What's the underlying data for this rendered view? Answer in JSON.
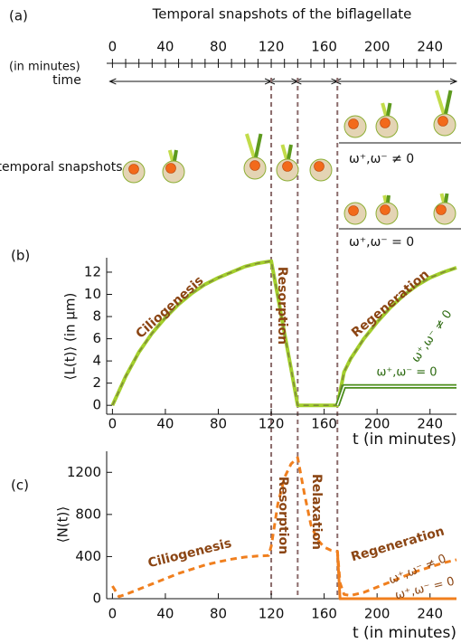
{
  "timeline": {
    "label": "(a)",
    "title": "Temporal snapshots of the biflagellate",
    "xlim": [
      -3,
      260
    ],
    "ticks": [
      0,
      40,
      80,
      120,
      160,
      200,
      240
    ],
    "minor_ticks": [
      0,
      10,
      20,
      30,
      40,
      50,
      60,
      70,
      80,
      90,
      100,
      110,
      120,
      130,
      140,
      150,
      160,
      170,
      180,
      190,
      200,
      210,
      220,
      230,
      240,
      250
    ],
    "unit_label": "(in minutes)",
    "axis_label": "time",
    "phase_bounds": [
      0,
      120,
      140,
      170,
      260
    ],
    "dividers": [
      120,
      140,
      170
    ],
    "snapshot_label": "temporal snapshots",
    "case_labels": [
      "ω⁺,ω⁻ ≠ 0",
      "ω⁺,ω⁻ = 0"
    ]
  },
  "chart_data": [
    {
      "type": "line",
      "label": "(b)",
      "ylabel": "⟨L(t)⟩  (in μm)",
      "xlabel": "t (in minutes)",
      "xlim": [
        -3,
        260
      ],
      "xticks": [
        0,
        40,
        80,
        120,
        160,
        200,
        240
      ],
      "ylim": [
        -0.8,
        13.3
      ],
      "yticks": [
        0,
        2,
        4,
        6,
        8,
        10,
        12
      ],
      "annotations": [
        "Ciliogenesis",
        "Resorption",
        "Regeneration"
      ],
      "x": [
        0,
        10,
        20,
        30,
        40,
        50,
        60,
        70,
        80,
        90,
        100,
        110,
        120,
        125,
        130,
        135,
        140,
        150,
        160,
        170,
        175,
        180,
        190,
        200,
        210,
        220,
        230,
        240,
        250,
        260
      ],
      "series": [
        {
          "name": "ω⁺,ω⁻ ≠ 0",
          "color": "#a3cf2c",
          "style": "dashed",
          "values": [
            0,
            2.6,
            4.8,
            6.5,
            7.9,
            9.1,
            10.1,
            10.9,
            11.5,
            12.0,
            12.5,
            12.8,
            13.0,
            9.8,
            6.5,
            3.3,
            0,
            0,
            0,
            0,
            3.0,
            4.2,
            6.0,
            7.5,
            8.8,
            9.9,
            10.8,
            11.5,
            12.0,
            12.4
          ]
        },
        {
          "name": "ω⁺,ω⁻ = 0",
          "color": "#4a8c1a",
          "style": "double",
          "values": [
            null,
            null,
            null,
            null,
            null,
            null,
            null,
            null,
            null,
            null,
            null,
            null,
            null,
            null,
            null,
            null,
            null,
            null,
            null,
            0,
            1.7,
            1.7,
            1.7,
            1.7,
            1.7,
            1.7,
            1.7,
            1.7,
            1.7,
            1.7
          ]
        }
      ]
    },
    {
      "type": "line",
      "label": "(c)",
      "ylabel": "⟨N(t)⟩",
      "xlabel": "t (in minutes)",
      "xlim": [
        -3,
        260
      ],
      "xticks": [
        0,
        40,
        80,
        120,
        160,
        200,
        240
      ],
      "ylim": [
        0,
        1400
      ],
      "yticks": [
        0,
        400,
        800,
        1200
      ],
      "annotations": [
        "Ciliogenesis",
        "Resorption",
        "Relaxation",
        "Regeneration"
      ],
      "x": [
        0,
        5,
        10,
        20,
        30,
        40,
        50,
        60,
        70,
        80,
        90,
        100,
        110,
        118,
        120,
        125,
        130,
        135,
        140,
        145,
        150,
        155,
        160,
        165,
        170,
        172,
        175,
        180,
        190,
        200,
        210,
        220,
        230,
        240,
        250,
        260
      ],
      "series": [
        {
          "name": "ω⁺,ω⁻ ≠ 0",
          "color": "#f07f1e",
          "style": "dashed",
          "values": [
            120,
            20,
            40,
            90,
            140,
            190,
            240,
            280,
            320,
            350,
            375,
            395,
            405,
            410,
            500,
            900,
            1150,
            1280,
            1340,
            1000,
            700,
            560,
            490,
            460,
            450,
            150,
            40,
            30,
            60,
            110,
            160,
            210,
            260,
            300,
            340,
            370
          ]
        },
        {
          "name": "ω⁺,ω⁻ = 0",
          "color": "#f07f1e",
          "style": "solid",
          "values": [
            null,
            null,
            null,
            null,
            null,
            null,
            null,
            null,
            null,
            null,
            null,
            null,
            null,
            null,
            null,
            null,
            null,
            null,
            null,
            null,
            null,
            null,
            null,
            null,
            450,
            0,
            0,
            0,
            0,
            0,
            0,
            0,
            0,
            0,
            0,
            0
          ]
        }
      ]
    }
  ]
}
